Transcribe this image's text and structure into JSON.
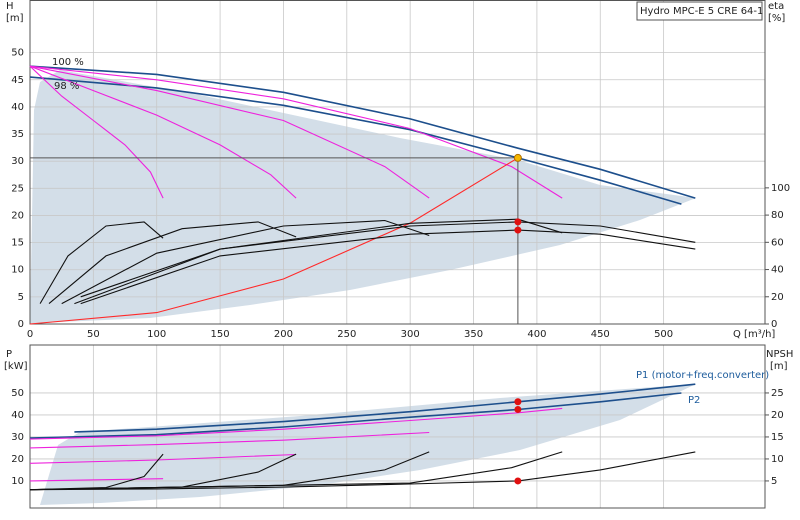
{
  "chart_data": [
    {
      "type": "line",
      "title": "Hydro MPC-E 5 CRE 64-1",
      "ylabel": "H",
      "yunit": "[m]",
      "y2label": "eta",
      "y2unit": "[%]",
      "xlabel": "Q [m³/h]",
      "annotations": [
        "100 %",
        "98 %"
      ],
      "xlim": [
        0,
        580
      ],
      "xticks": [
        0,
        50,
        100,
        150,
        200,
        250,
        300,
        350,
        400,
        450,
        500
      ],
      "ylim": [
        0,
        59.7
      ],
      "yticks": [
        0,
        5,
        10,
        15,
        20,
        25,
        30,
        35,
        40,
        45,
        50
      ],
      "y2lim": [
        0,
        238
      ],
      "y2ticks": [
        0,
        20,
        40,
        60,
        80,
        100
      ],
      "grid": true,
      "series": [
        {
          "color": "#1d4f8c",
          "x": [
            0,
            100,
            200,
            300,
            385,
            450,
            525
          ],
          "values": [
            47.5,
            46,
            42.7,
            37.8,
            32.4,
            28.5,
            23.2
          ]
        },
        {
          "color": "#1d4f8c",
          "x": [
            0,
            100,
            200,
            300,
            385,
            450,
            514
          ],
          "values": [
            45.5,
            43.5,
            40.3,
            35.8,
            30.6,
            26.5,
            22.1
          ]
        },
        {
          "color": "#ee22dd",
          "x": [
            0,
            25,
            50,
            75,
            95,
            105
          ],
          "values": [
            47.5,
            42,
            37.5,
            33,
            28,
            23.2
          ]
        },
        {
          "color": "#ee22dd",
          "x": [
            0,
            50,
            100,
            150,
            190,
            210
          ],
          "values": [
            47.5,
            43,
            38.5,
            33,
            27.5,
            23.2
          ]
        },
        {
          "color": "#ee22dd",
          "x": [
            0,
            100,
            200,
            280,
            315
          ],
          "values": [
            47.5,
            43,
            37.5,
            29,
            23.2
          ]
        },
        {
          "color": "#ee22dd",
          "x": [
            0,
            100,
            200,
            300,
            380,
            420
          ],
          "values": [
            47.5,
            45,
            41.5,
            36,
            29,
            23.2
          ]
        },
        {
          "color": "#ff2a2a",
          "x": [
            0,
            100,
            200,
            300,
            385
          ],
          "values": [
            0,
            2.1,
            8.3,
            18.6,
            30.6
          ]
        },
        {
          "color": "#111111",
          "axis": "y2",
          "x": [
            8,
            30,
            60,
            90,
            105
          ],
          "values": [
            15,
            50,
            72,
            75,
            63
          ]
        },
        {
          "color": "#111111",
          "axis": "y2",
          "x": [
            15,
            60,
            120,
            180,
            210
          ],
          "values": [
            15,
            50,
            70,
            75,
            64
          ]
        },
        {
          "color": "#111111",
          "axis": "y2",
          "x": [
            25,
            100,
            200,
            280,
            315
          ],
          "values": [
            15,
            52,
            72,
            76,
            65
          ]
        },
        {
          "color": "#111111",
          "axis": "y2",
          "x": [
            35,
            150,
            300,
            385,
            420
          ],
          "values": [
            15,
            55,
            74,
            77,
            67
          ]
        },
        {
          "color": "#111111",
          "axis": "y2",
          "x": [
            40,
            150,
            300,
            385,
            450,
            525
          ],
          "values": [
            20,
            55,
            72,
            75,
            72,
            60
          ]
        },
        {
          "color": "#111111",
          "axis": "y2",
          "x": [
            40,
            150,
            300,
            385,
            450,
            525
          ],
          "values": [
            15,
            50,
            66,
            69,
            66,
            55
          ]
        },
        {
          "color": "#f5b800",
          "marker": true,
          "x": [
            385
          ],
          "values": [
            30.6
          ]
        },
        {
          "color": "#e01010",
          "marker": true,
          "axis": "y2",
          "x": [
            385,
            385
          ],
          "values": [
            75,
            69
          ]
        }
      ]
    },
    {
      "type": "line",
      "ylabel": "P",
      "yunit": "[kW]",
      "y2label": "NPSH",
      "y2unit": "[m]",
      "xlim": [
        0,
        580
      ],
      "xticks": [
        0,
        50,
        100,
        150,
        200,
        250,
        300,
        350,
        400,
        450,
        500
      ],
      "ylim": [
        -2.3,
        71.8
      ],
      "yticks": [
        10,
        20,
        30,
        40,
        50
      ],
      "y2lim": [
        -1.15,
        35.9
      ],
      "y2ticks": [
        5,
        10,
        15,
        20,
        25
      ],
      "grid": true,
      "series": [
        {
          "name": "P1 (motor+freq.converter)",
          "color": "#1d4f8c",
          "x": [
            35,
            100,
            200,
            300,
            385,
            450,
            525
          ],
          "values": [
            32.3,
            33.5,
            37,
            41.5,
            46,
            49.5,
            54
          ]
        },
        {
          "name": "P2",
          "color": "#1d4f8c",
          "x": [
            0,
            100,
            200,
            300,
            385,
            450,
            514
          ],
          "values": [
            29.5,
            31,
            34.5,
            39,
            42.5,
            46,
            50
          ]
        },
        {
          "color": "#ee22dd",
          "x": [
            0,
            100,
            200,
            300,
            385,
            420
          ],
          "values": [
            29,
            30.5,
            33.5,
            37.5,
            41,
            43
          ]
        },
        {
          "color": "#ee22dd",
          "x": [
            0,
            100,
            200,
            315
          ],
          "values": [
            25,
            26.5,
            28.5,
            32
          ]
        },
        {
          "color": "#ee22dd",
          "x": [
            0,
            100,
            210
          ],
          "values": [
            18,
            19.5,
            22
          ]
        },
        {
          "color": "#ee22dd",
          "x": [
            0,
            105
          ],
          "values": [
            10,
            11
          ]
        },
        {
          "color": "#111111",
          "axis": "y2",
          "x": [
            0,
            100,
            200,
            300,
            385,
            450,
            525
          ],
          "values": [
            3,
            3.2,
            3.6,
            4.3,
            5,
            7.5,
            11.6
          ]
        },
        {
          "color": "#111111",
          "axis": "y2",
          "x": [
            0,
            60,
            90,
            105
          ],
          "values": [
            3,
            3.5,
            6,
            11.1
          ]
        },
        {
          "color": "#111111",
          "axis": "y2",
          "x": [
            0,
            120,
            180,
            210
          ],
          "values": [
            3,
            3.6,
            7,
            11.1
          ]
        },
        {
          "color": "#111111",
          "axis": "y2",
          "x": [
            0,
            200,
            280,
            315
          ],
          "values": [
            3,
            4,
            7.5,
            11.6
          ]
        },
        {
          "color": "#111111",
          "axis": "y2",
          "x": [
            0,
            300,
            380,
            420
          ],
          "values": [
            3,
            4.5,
            8,
            11.6
          ]
        },
        {
          "color": "#e01010",
          "marker": true,
          "x": [
            385,
            385
          ],
          "values": [
            46,
            42.5
          ]
        },
        {
          "color": "#e01010",
          "marker": true,
          "axis": "y2",
          "x": [
            385
          ],
          "values": [
            5
          ]
        }
      ]
    }
  ]
}
